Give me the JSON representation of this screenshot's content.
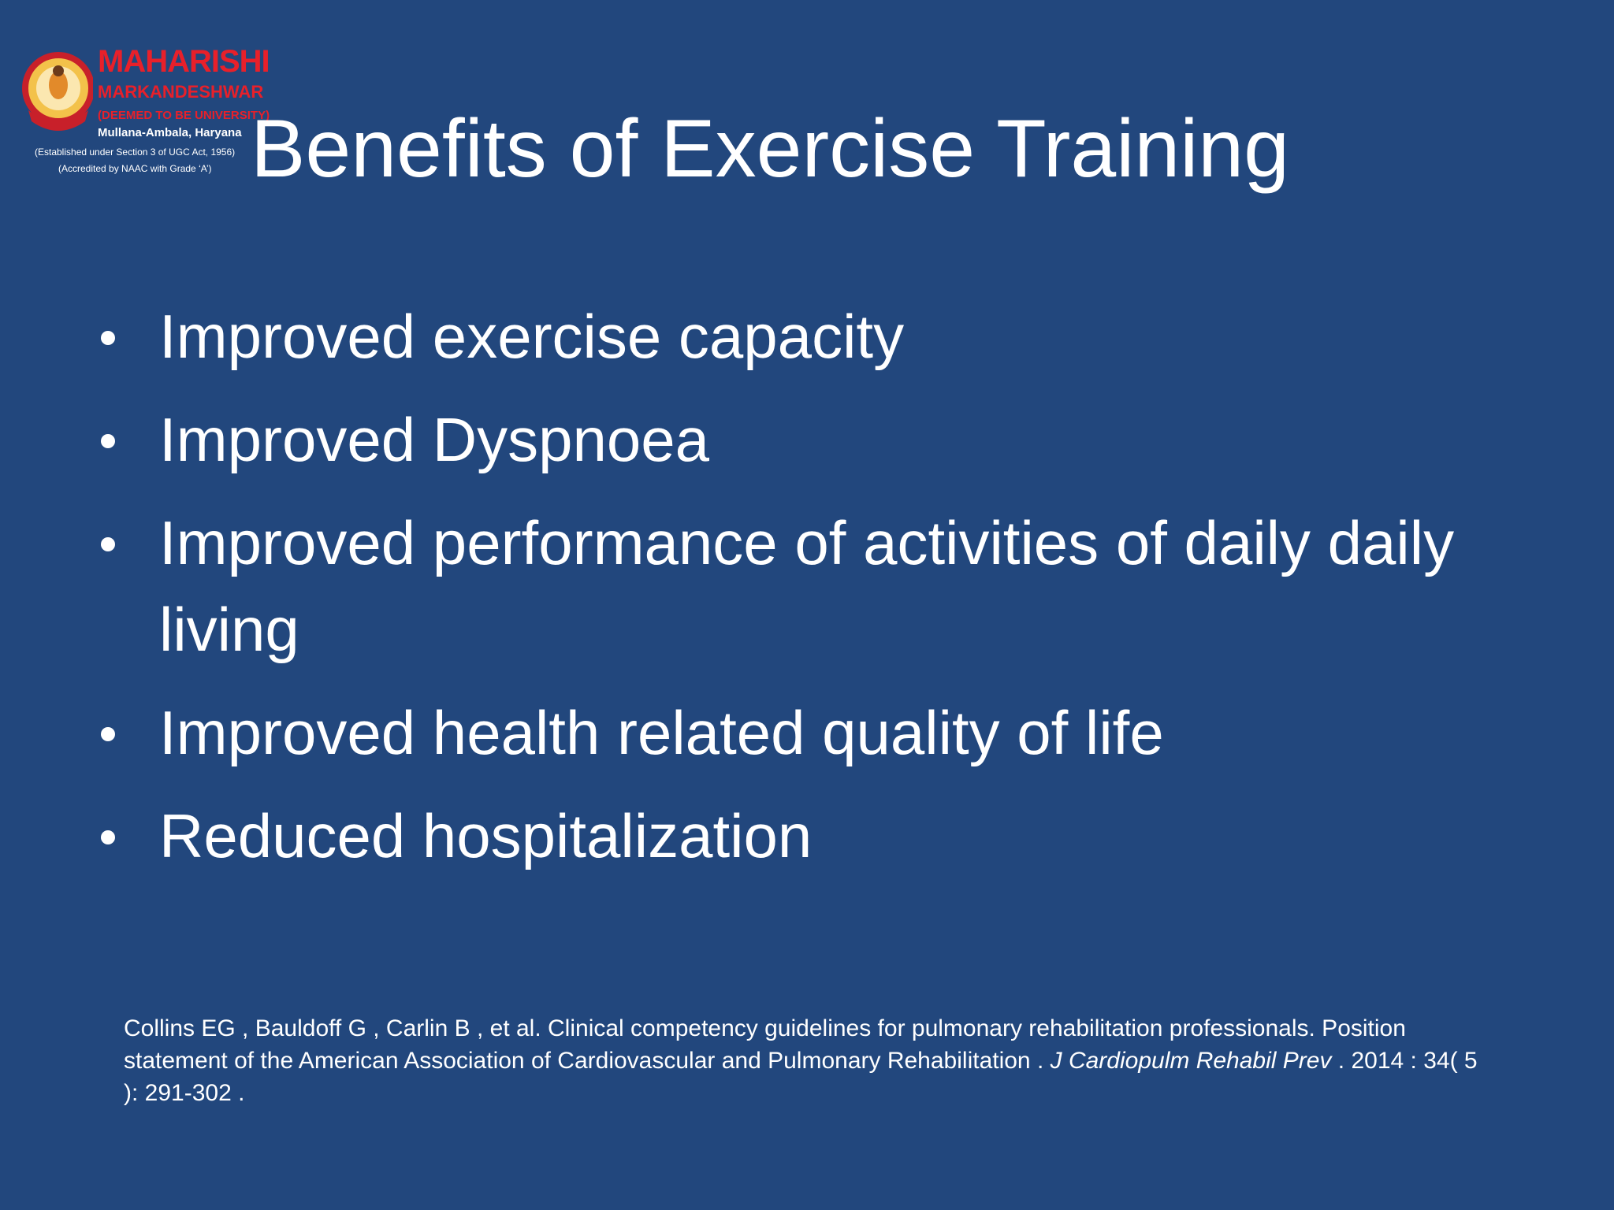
{
  "logo": {
    "name": "MAHARISHI",
    "name2": "MARKANDESHWAR",
    "status": "(DEEMED TO BE UNIVERSITY)",
    "location": "Mullana-Ambala, Haryana",
    "established": "(Established under Section 3 of UGC Act, 1956)",
    "accredited": "(Accredited by NAAC with Grade ‘A’)"
  },
  "title": "Benefits of Exercise Training",
  "bullets": [
    "Improved exercise capacity",
    "Improved Dyspnoea",
    "Improved performance of activities of daily daily living",
    "Improved health related quality of life",
    "Reduced hospitalization"
  ],
  "citation": [
    "Collins EG , Bauldoff G , Carlin B , et al. Clinical competency guidelines for pulmonary rehabilitation professionals. Position statement of the American Association of Cardiovascular and Pulmonary Rehabilitation . ",
    "J Cardiopulm Rehabil Prev",
    " . 2014 : 34( 5 ): 291-302 ."
  ]
}
